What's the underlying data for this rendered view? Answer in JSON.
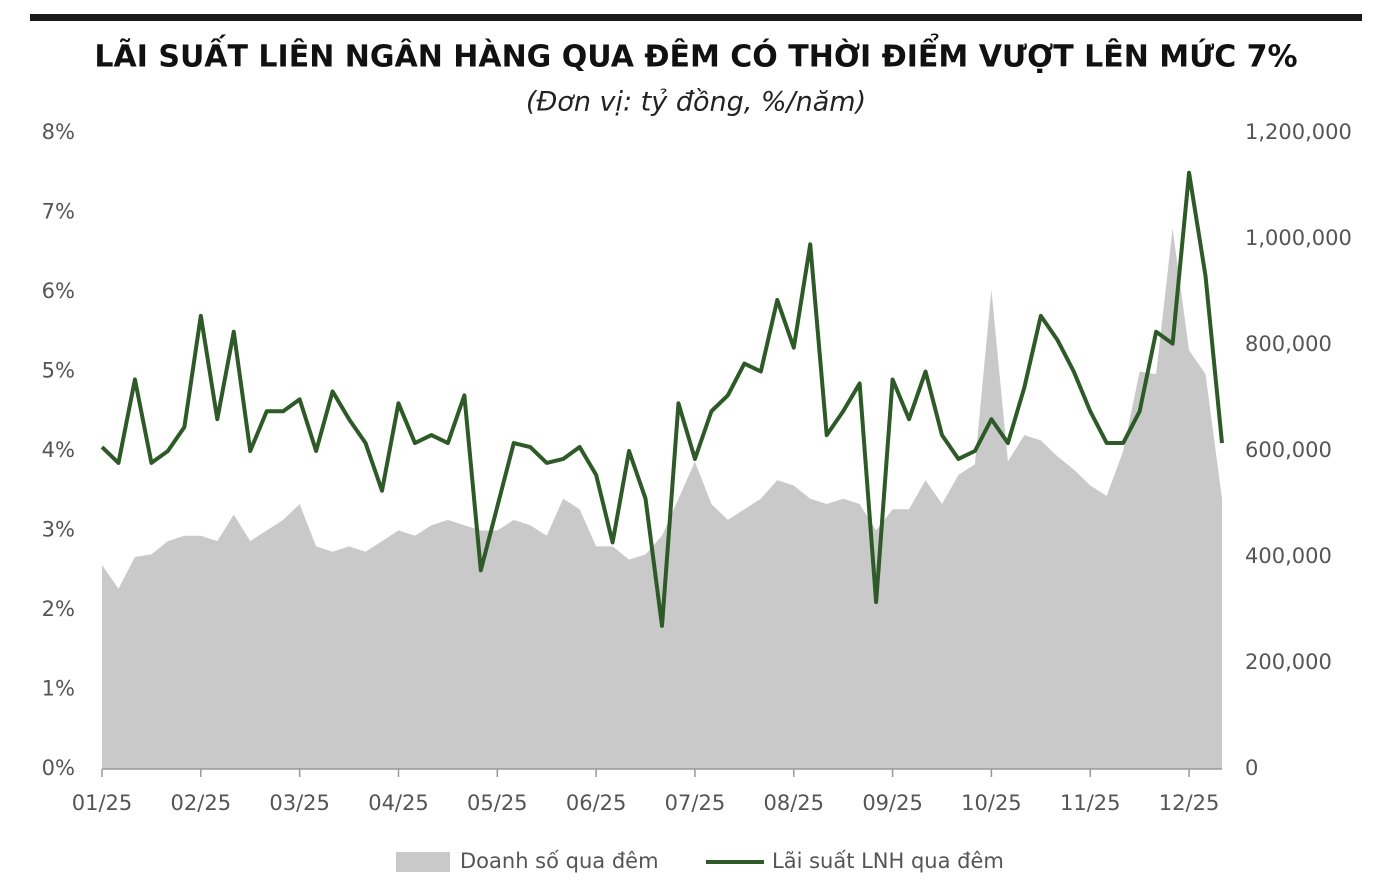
{
  "chart_data": {
    "type": "line",
    "title": "LÃI SUẤT LIÊN NGÂN HÀNG QUA ĐÊM CÓ THỜI ĐIỂM VƯỢT LÊN MỨC 7%",
    "subtitle": "(Đơn vị: tỷ đồng, %/năm)",
    "categories": [
      "01/25",
      null,
      null,
      null,
      null,
      null,
      "02/25",
      null,
      null,
      null,
      null,
      null,
      "03/25",
      null,
      null,
      null,
      null,
      null,
      "04/25",
      null,
      null,
      null,
      null,
      null,
      "05/25",
      null,
      null,
      null,
      null,
      null,
      "06/25",
      null,
      null,
      null,
      null,
      null,
      "07/25",
      null,
      null,
      null,
      null,
      null,
      "08/25",
      null,
      null,
      null,
      null,
      null,
      "09/25",
      null,
      null,
      null,
      null,
      null,
      "10/25",
      null,
      null,
      null,
      null,
      null,
      "11/25",
      null,
      null,
      null,
      null,
      null,
      "12/25",
      null,
      null
    ],
    "series": [
      {
        "name": "Doanh số qua đêm",
        "type": "area",
        "axis": "y2",
        "color": "#c9c9c9",
        "values": [
          385000,
          340000,
          400000,
          405000,
          430000,
          440000,
          440000,
          430000,
          480000,
          430000,
          450000,
          470000,
          500000,
          420000,
          410000,
          420000,
          410000,
          430000,
          450000,
          440000,
          460000,
          470000,
          460000,
          450000,
          450000,
          470000,
          460000,
          440000,
          510000,
          490000,
          420000,
          420000,
          395000,
          405000,
          440000,
          510000,
          580000,
          500000,
          470000,
          490000,
          510000,
          545000,
          535000,
          510000,
          500000,
          510000,
          500000,
          450000,
          490000,
          490000,
          545000,
          500000,
          555000,
          575000,
          905000,
          580000,
          630000,
          620000,
          590000,
          565000,
          535000,
          515000,
          600000,
          750000,
          745000,
          1020000,
          790000,
          745000,
          510000
        ]
      },
      {
        "name": "Lãi suất LNH qua đêm",
        "type": "line",
        "axis": "y",
        "color": "#2d5a27",
        "values": [
          4.05,
          3.85,
          4.9,
          3.85,
          4.0,
          4.3,
          5.7,
          4.4,
          5.5,
          4.0,
          4.5,
          4.5,
          4.65,
          4.0,
          4.75,
          4.4,
          4.1,
          3.5,
          4.6,
          4.1,
          4.2,
          4.1,
          4.7,
          2.5,
          3.3,
          4.1,
          4.05,
          3.85,
          3.9,
          4.05,
          3.7,
          2.85,
          4.0,
          3.4,
          1.8,
          4.6,
          3.9,
          4.5,
          4.7,
          5.1,
          5.0,
          5.9,
          5.3,
          6.6,
          4.2,
          4.5,
          4.85,
          2.1,
          4.9,
          4.4,
          5.0,
          4.2,
          3.9,
          4.0,
          4.4,
          4.1,
          4.8,
          5.7,
          5.4,
          5.0,
          4.5,
          4.1,
          4.1,
          4.5,
          5.5,
          5.35,
          7.5,
          6.2,
          4.1
        ]
      }
    ],
    "ylim": [
      0,
      8
    ],
    "yticks": [
      {
        "value": 0,
        "label": "0%"
      },
      {
        "value": 1,
        "label": "1%"
      },
      {
        "value": 2,
        "label": "2%"
      },
      {
        "value": 3,
        "label": "3%"
      },
      {
        "value": 4,
        "label": "4%"
      },
      {
        "value": 5,
        "label": "5%"
      },
      {
        "value": 6,
        "label": "6%"
      },
      {
        "value": 7,
        "label": "7%"
      },
      {
        "value": 8,
        "label": "8%"
      }
    ],
    "y2lim": [
      0,
      1200000
    ],
    "y2ticks": [
      0,
      {
        "value": 200000,
        "label": "200,000"
      },
      {
        "value": 400000,
        "label": "400,000"
      },
      {
        "value": 600000,
        "label": "600,000"
      },
      {
        "value": 800000,
        "label": "800,000"
      },
      {
        "value": 1000000,
        "label": "1,000,000"
      },
      {
        "value": 1200000,
        "label": "1,200,000"
      }
    ]
  }
}
